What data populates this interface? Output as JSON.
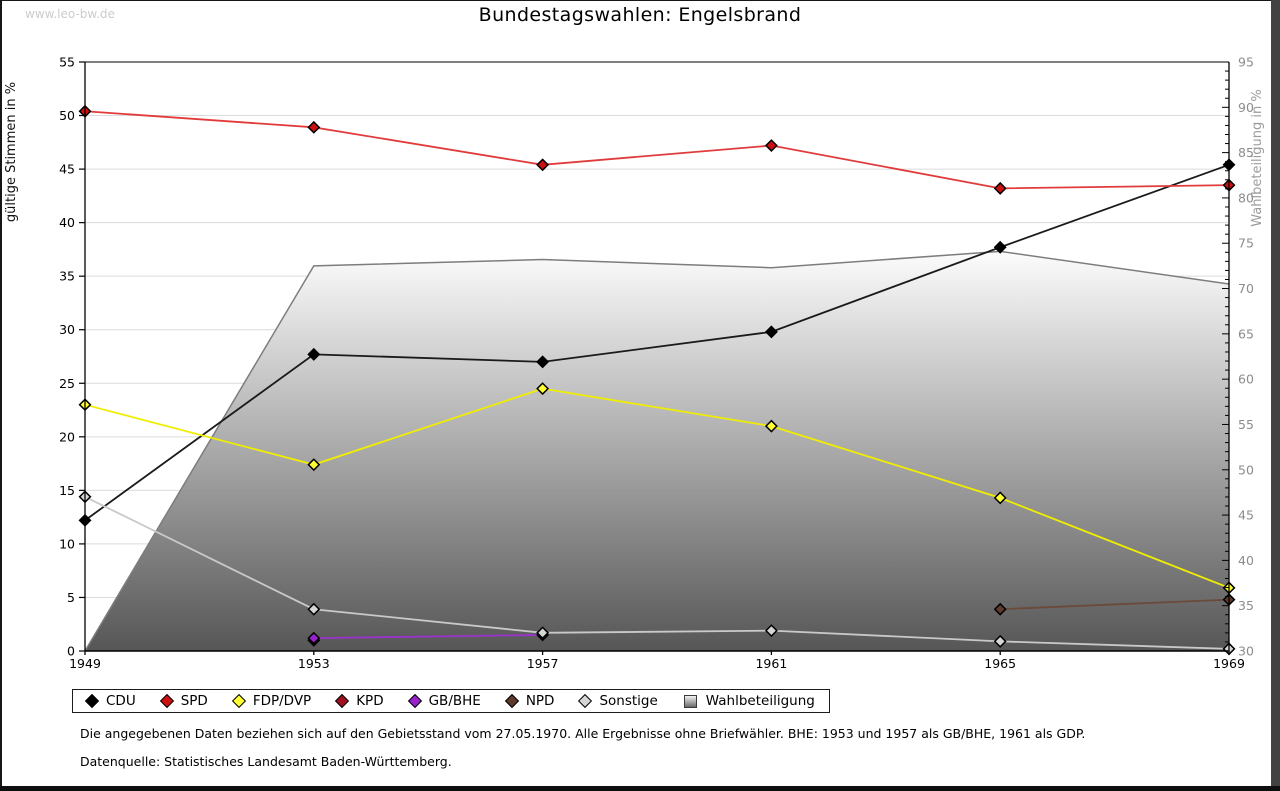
{
  "page": {
    "watermark": "www.leo-bw.de",
    "title": "Bundestagswahlen: Engelsbrand"
  },
  "chart_data": {
    "type": "line",
    "title": "Bundestagswahlen: Engelsbrand",
    "x": [
      1949,
      1953,
      1957,
      1961,
      1965,
      1969
    ],
    "left_axis": {
      "label": "gültige Stimmen in %",
      "min": 0,
      "max": 55,
      "tick_step": 5,
      "grid": true
    },
    "right_axis": {
      "label": "Wahlbeteiligung in %",
      "min": 30,
      "max": 95,
      "tick_step": 5,
      "minor_tick_step": 1
    },
    "legend_position": "bottom",
    "series": [
      {
        "name": "CDU",
        "type": "line",
        "axis": "left",
        "line_color": "#1a1a1a",
        "marker_color": "#000000",
        "values": [
          12.2,
          27.7,
          27.0,
          29.8,
          37.7,
          45.4
        ]
      },
      {
        "name": "SPD",
        "type": "line",
        "axis": "left",
        "line_color": "#e23b3b",
        "marker_color": "#cc1010",
        "values": [
          50.4,
          48.9,
          45.4,
          47.2,
          43.2,
          43.5
        ]
      },
      {
        "name": "FDP/DVP",
        "type": "line",
        "axis": "left",
        "line_color": "#f0ee00",
        "marker_color": "#ffff33",
        "values": [
          23.0,
          17.4,
          24.5,
          21.0,
          14.3,
          5.9
        ]
      },
      {
        "name": "KPD",
        "type": "line",
        "axis": "left",
        "line_color": "#a01020",
        "marker_color": "#a01020",
        "values": [
          null,
          1.0,
          null,
          null,
          null,
          null
        ]
      },
      {
        "name": "GB/BHE",
        "type": "line",
        "axis": "left",
        "line_color": "#9933cc",
        "marker_color": "#9922cc",
        "values": [
          null,
          1.2,
          1.5,
          null,
          null,
          null
        ]
      },
      {
        "name": "NPD",
        "type": "line",
        "axis": "left",
        "line_color": "#6b4a3a",
        "marker_color": "#5d3a2c",
        "values": [
          null,
          null,
          null,
          null,
          3.9,
          4.8
        ]
      },
      {
        "name": "Sonstige",
        "type": "line",
        "axis": "left",
        "line_color": "#c9c9c9",
        "marker_color": "#d6d6d6",
        "values": [
          14.4,
          3.9,
          1.7,
          1.9,
          0.9,
          0.2
        ]
      },
      {
        "name": "Wahlbeteiligung",
        "type": "area",
        "axis": "right",
        "line_color": "#7d7d7d",
        "fill_top": "#fcfcfc",
        "fill_bottom": "#565656",
        "values": [
          null,
          72.5,
          73.2,
          72.3,
          74.1,
          70.5
        ]
      }
    ]
  },
  "footnotes": [
    "Die angegebenen Daten beziehen sich auf den Gebietsstand vom 27.05.1970. Alle Ergebnisse ohne Briefwähler. BHE: 1953 und 1957 als GB/BHE, 1961 als GDP.",
    "Datenquelle: Statistisches Landesamt Baden-Württemberg."
  ]
}
